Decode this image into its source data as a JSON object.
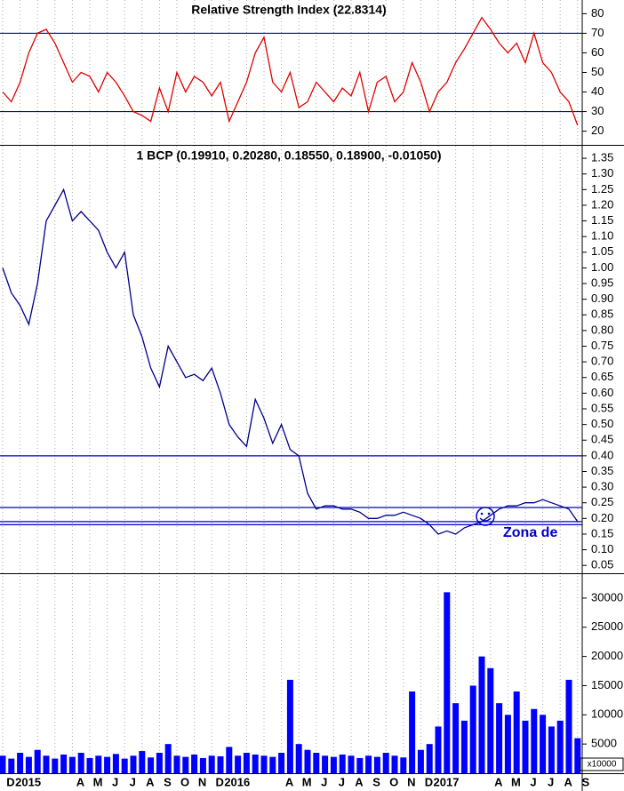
{
  "chart_data": [
    {
      "type": "line",
      "title": "Relative Strength Index (22.8314)",
      "color": "#e00000",
      "values": [
        40,
        35,
        45,
        60,
        70,
        72,
        65,
        55,
        45,
        50,
        48,
        40,
        50,
        45,
        38,
        30,
        28,
        25,
        42,
        30,
        50,
        40,
        48,
        45,
        38,
        45,
        25,
        35,
        45,
        60,
        68,
        45,
        40,
        50,
        32,
        35,
        45,
        40,
        35,
        42,
        38,
        50,
        30,
        45,
        48,
        35,
        40,
        55,
        45,
        30,
        40,
        45,
        55,
        62,
        70,
        78,
        72,
        65,
        60,
        65,
        55,
        70,
        55,
        50,
        40,
        35,
        23
      ],
      "ylim": [
        13,
        87
      ],
      "yticks": [
        20,
        30,
        40,
        50,
        60,
        70,
        80
      ],
      "hlines": [
        70,
        30
      ],
      "hline_color": "#0000cc"
    },
    {
      "type": "line",
      "title": "1 BCP (0.19910, 0.20280, 0.18550, 0.18900, -0.01050)",
      "color": "#00008b",
      "values": [
        1.0,
        0.92,
        0.88,
        0.82,
        0.95,
        1.15,
        1.2,
        1.25,
        1.15,
        1.18,
        1.15,
        1.12,
        1.05,
        1.0,
        1.05,
        0.85,
        0.78,
        0.68,
        0.62,
        0.75,
        0.7,
        0.65,
        0.66,
        0.64,
        0.68,
        0.6,
        0.5,
        0.46,
        0.43,
        0.58,
        0.52,
        0.44,
        0.5,
        0.42,
        0.4,
        0.28,
        0.23,
        0.24,
        0.24,
        0.23,
        0.23,
        0.22,
        0.2,
        0.2,
        0.21,
        0.21,
        0.22,
        0.21,
        0.2,
        0.18,
        0.15,
        0.16,
        0.15,
        0.17,
        0.18,
        0.19,
        0.21,
        0.23,
        0.24,
        0.24,
        0.25,
        0.25,
        0.26,
        0.25,
        0.24,
        0.23,
        0.19
      ],
      "ylim": [
        0.025,
        1.39
      ],
      "yticks": [
        0.05,
        {
          "value": 0.1,
          "label": "0.10"
        },
        0.15,
        {
          "value": 0.2,
          "label": "0.20"
        },
        0.25,
        {
          "value": 0.3,
          "label": "0.30"
        },
        0.35,
        {
          "value": 0.4,
          "label": "0.40"
        },
        0.45,
        {
          "value": 0.5,
          "label": "0.50"
        },
        0.55,
        {
          "value": 0.6,
          "label": "0.60"
        },
        0.65,
        {
          "value": 0.7,
          "label": "0.70"
        },
        0.75,
        {
          "value": 0.8,
          "label": "0.80"
        },
        0.85,
        {
          "value": 0.9,
          "label": "0.90"
        },
        0.95,
        {
          "value": 1.0,
          "label": "1.00"
        },
        1.05,
        {
          "value": 1.1,
          "label": "1.10"
        },
        1.15,
        {
          "value": 1.2,
          "label": "1.20"
        },
        1.25,
        {
          "value": 1.3,
          "label": "1.30"
        },
        1.35
      ],
      "hlines": [
        0.4,
        0.235,
        0.19,
        0.18
      ],
      "hline_color": "#0000cc",
      "annotation": "Zona de"
    },
    {
      "type": "bar",
      "color": "#0000ff",
      "unit_label": "x10000",
      "categories": [
        "D",
        null,
        "2015",
        null,
        null,
        null,
        null,
        null,
        "A",
        null,
        "M",
        null,
        "J",
        null,
        "J",
        null,
        "A",
        null,
        "S",
        null,
        "O",
        null,
        "N",
        null,
        "D",
        null,
        "2016",
        null,
        null,
        null,
        null,
        null,
        "A",
        null,
        "M",
        null,
        "J",
        null,
        "J",
        null,
        "A",
        null,
        "S",
        null,
        "O",
        null,
        "N",
        null,
        "D",
        null,
        "2017",
        null,
        null,
        null,
        null,
        null,
        "A",
        null,
        "M",
        null,
        "J",
        null,
        "J",
        null,
        "A",
        null,
        "S"
      ],
      "values": [
        3000,
        2500,
        3500,
        2800,
        4000,
        3000,
        2500,
        3200,
        2800,
        3500,
        2600,
        3000,
        2800,
        3300,
        2500,
        3000,
        3800,
        2700,
        3500,
        5000,
        3000,
        2800,
        3200,
        2600,
        3000,
        2900,
        4500,
        3000,
        3500,
        3200,
        3000,
        2800,
        3500,
        16000,
        5000,
        4000,
        3500,
        3000,
        2800,
        3200,
        3000,
        2600,
        3000,
        2800,
        3500,
        3000,
        2700,
        14000,
        4000,
        5000,
        8000,
        31000,
        12000,
        9000,
        15000,
        20000,
        18000,
        12000,
        10000,
        14000,
        9000,
        11000,
        10000,
        8000,
        9000,
        16000,
        6000
      ],
      "ylim": [
        0,
        34100
      ],
      "yticks": [
        5000,
        10000,
        15000,
        20000,
        25000,
        30000
      ]
    }
  ]
}
